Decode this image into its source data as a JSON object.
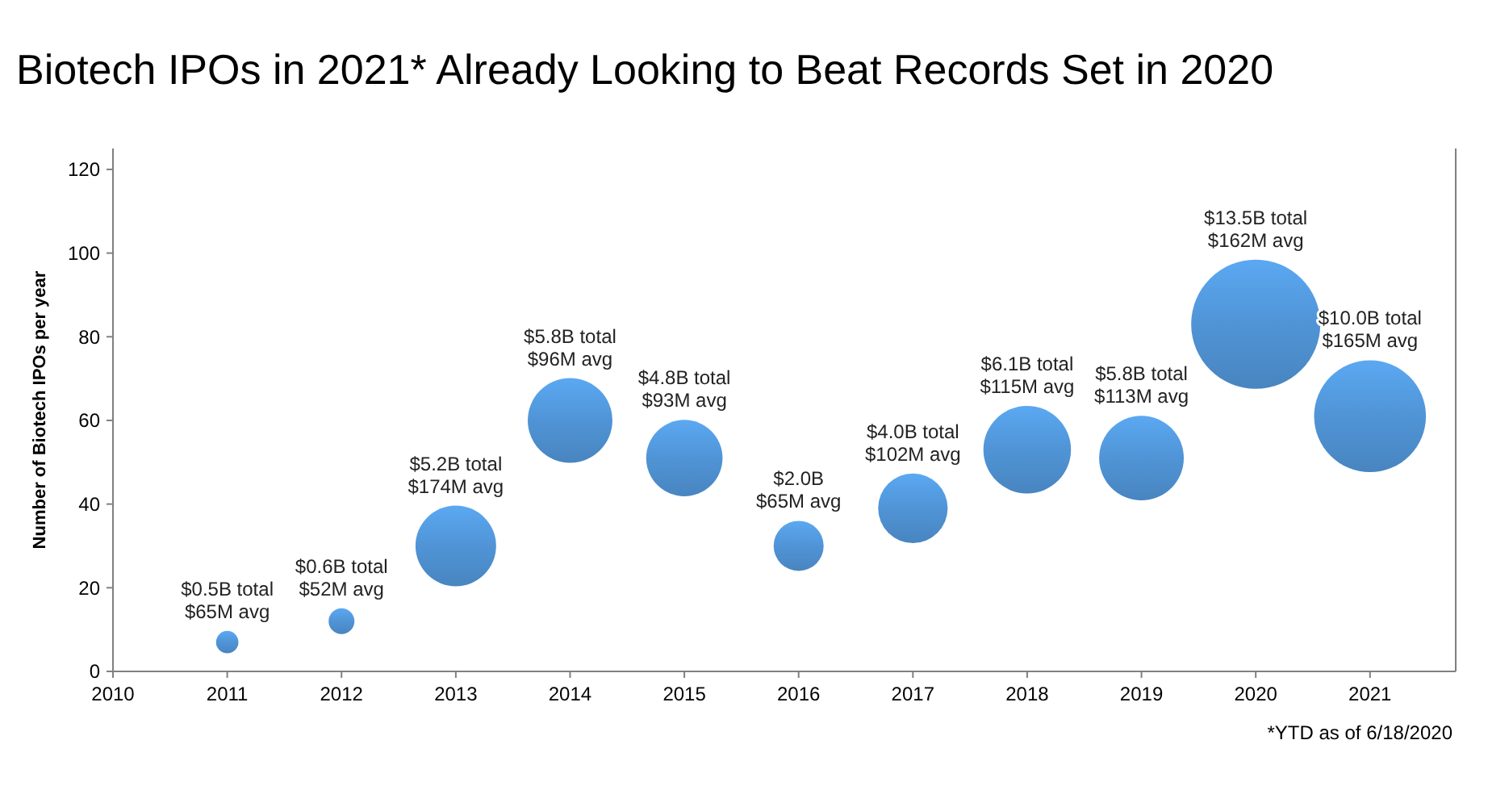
{
  "chart_data": {
    "type": "bubble",
    "title": "Biotech IPOs in 2021* Already Looking to Beat Records Set in 2020",
    "ylabel": "Number of Biotech IPOs per year",
    "x": [
      2011,
      2012,
      2013,
      2014,
      2015,
      2016,
      2017,
      2018,
      2019,
      2020,
      2021
    ],
    "values": [
      7,
      12,
      30,
      60,
      51,
      30,
      39,
      53,
      51,
      83,
      61
    ],
    "sizes": [
      0.03,
      0.04,
      0.39,
      0.43,
      0.35,
      0.15,
      0.29,
      0.46,
      0.43,
      1,
      0.75
    ],
    "value_labels": [
      "$0.5B total\n$65M avg",
      "$0.6B total\n$52M avg",
      "$5.2B total\n$174M avg",
      "$5.8B total\n$96M avg",
      "$4.8B total\n$93M avg",
      "$2.0B\n$65M avg",
      "$4.0B total\n$102M avg",
      "$6.1B total\n$115M avg",
      "$5.8B total\n$113M avg",
      "$13.5B total\n$162M avg",
      "$10.0B total\n$165M avg"
    ],
    "color": "#5094d6",
    "xlim": [
      2010,
      2021.75
    ],
    "xticks": [
      2010,
      2011,
      2012,
      2013,
      2014,
      2015,
      2016,
      2017,
      2018,
      2019,
      2020,
      2021
    ],
    "ylim": [
      0,
      125
    ],
    "yticks": [
      0,
      20,
      40,
      60,
      80,
      100,
      120
    ],
    "grid": false,
    "annotations": [
      "*YTD as of 6/18/2020"
    ]
  }
}
